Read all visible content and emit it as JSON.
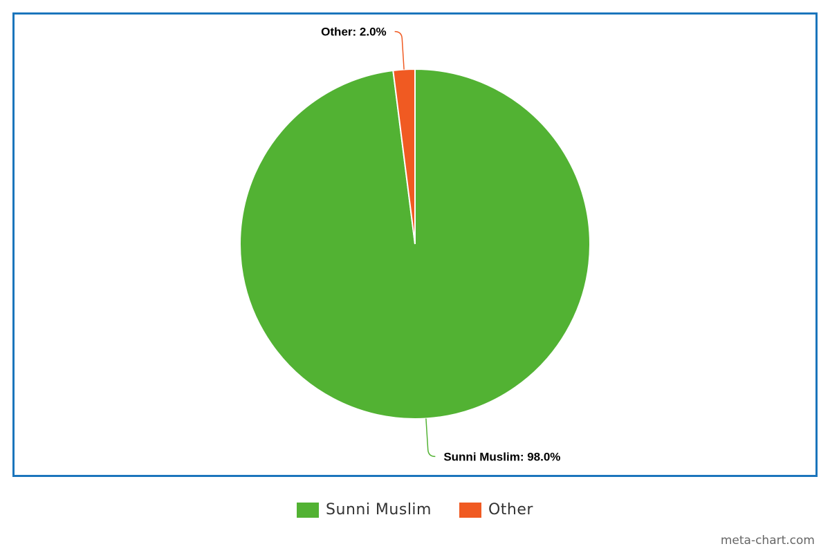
{
  "chart_data": {
    "type": "pie",
    "title": "",
    "slices": [
      {
        "name": "Sunni Muslim",
        "value": 98.0,
        "label": "Sunni Muslim: 98.0%",
        "color": "#52b233"
      },
      {
        "name": "Other",
        "value": 2.0,
        "label": "Other: 2.0%",
        "color": "#f05a22"
      }
    ],
    "legend_position": "bottom-center"
  },
  "legend": {
    "items": [
      {
        "label": "Sunni Muslim",
        "color": "#52b233"
      },
      {
        "label": "Other",
        "color": "#f05a22"
      }
    ]
  },
  "credit": "meta-chart.com",
  "colors": {
    "frame_border": "#1b75bc",
    "slice_border": "#ffffff"
  }
}
